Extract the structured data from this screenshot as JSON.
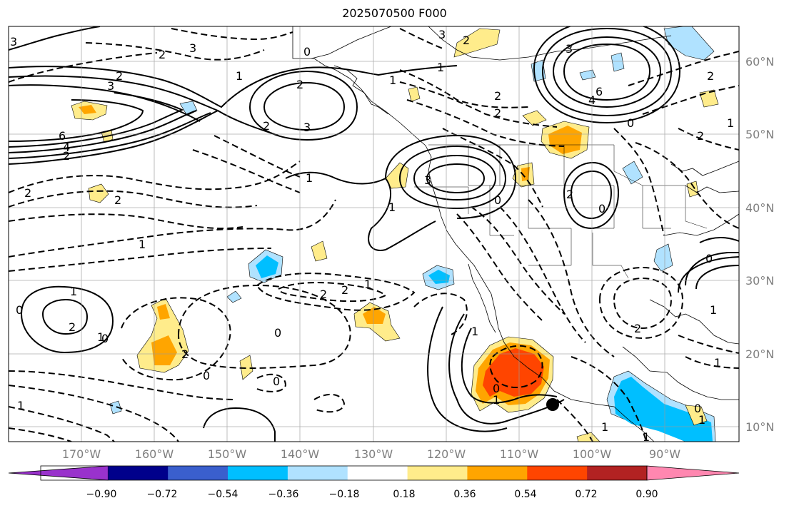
{
  "title": "2025070500 F000",
  "lon_ticks": [
    "170°W",
    "160°W",
    "150°W",
    "140°W",
    "130°W",
    "120°W",
    "110°W",
    "100°W",
    "90°W"
  ],
  "lat_ticks": [
    "60°N",
    "50°N",
    "40°N",
    "30°N",
    "20°N",
    "10°N"
  ],
  "colorbar": {
    "ticks": [
      "−0.90",
      "−0.72",
      "−0.54",
      "−0.36",
      "−0.18",
      "0.18",
      "0.36",
      "0.54",
      "0.72",
      "0.90"
    ],
    "colors": [
      "#9932cc",
      "#00008b",
      "#3a5fcd",
      "#00bfff",
      "#b0e2ff",
      "#ffffff",
      "#ffec8b",
      "#ffa500",
      "#ff4500",
      "#b22222",
      "#ff87b0"
    ]
  },
  "contour_labels": [
    {
      "text": "3"
    },
    {
      "text": "2"
    },
    {
      "text": "1"
    },
    {
      "text": "3"
    },
    {
      "text": "2"
    },
    {
      "text": "6"
    },
    {
      "text": "4"
    },
    {
      "text": "2"
    },
    {
      "text": "2"
    },
    {
      "text": "3"
    },
    {
      "text": "2"
    },
    {
      "text": "1"
    },
    {
      "text": "1"
    },
    {
      "text": "0"
    },
    {
      "text": "3"
    },
    {
      "text": "2"
    },
    {
      "text": "1"
    },
    {
      "text": "2"
    },
    {
      "text": "2"
    },
    {
      "text": "3"
    },
    {
      "text": "6"
    },
    {
      "text": "4"
    },
    {
      "text": "2"
    },
    {
      "text": "0"
    },
    {
      "text": "2"
    },
    {
      "text": "1"
    },
    {
      "text": "3"
    },
    {
      "text": "1"
    },
    {
      "text": "2"
    },
    {
      "text": "0"
    },
    {
      "text": "2"
    },
    {
      "text": "1"
    },
    {
      "text": "2"
    },
    {
      "text": "0"
    },
    {
      "text": "1"
    },
    {
      "text": "1"
    },
    {
      "text": "2"
    },
    {
      "text": "0"
    },
    {
      "text": "2"
    },
    {
      "text": "1"
    },
    {
      "text": "2"
    },
    {
      "text": "2"
    },
    {
      "text": "1"
    },
    {
      "text": "0"
    },
    {
      "text": "0"
    },
    {
      "text": "0"
    },
    {
      "text": "1"
    },
    {
      "text": "0"
    },
    {
      "text": "1"
    },
    {
      "text": "1"
    },
    {
      "text": "2"
    },
    {
      "text": "0"
    },
    {
      "text": "1"
    },
    {
      "text": "1"
    },
    {
      "text": "0"
    },
    {
      "text": "1"
    },
    {
      "text": "1"
    },
    {
      "text": "0"
    },
    {
      "text": "3"
    }
  ]
}
